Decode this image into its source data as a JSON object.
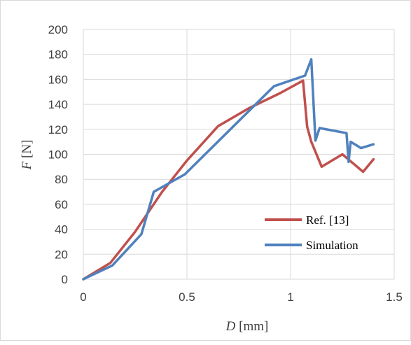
{
  "chart_data": {
    "type": "line",
    "title": "",
    "xlabel": {
      "var": "D",
      "unit": " [mm]"
    },
    "ylabel": {
      "var": "F",
      "unit": " [N]"
    },
    "xlim": [
      0,
      1.5
    ],
    "ylim": [
      0,
      200
    ],
    "xticks": [
      0,
      0.5,
      1,
      1.5
    ],
    "xtick_labels": [
      "0",
      "0.5",
      "1",
      "1.5"
    ],
    "yticks": [
      0,
      20,
      40,
      60,
      80,
      100,
      120,
      140,
      160,
      180,
      200
    ],
    "ytick_labels": [
      "0",
      "20",
      "40",
      "60",
      "80",
      "100",
      "120",
      "140",
      "160",
      "180",
      "200"
    ],
    "grid": true,
    "legend_position": "bottom-right",
    "series": [
      {
        "name": "Ref. [13]",
        "color": "#c0504d",
        "points": [
          [
            0,
            0
          ],
          [
            0.13,
            13
          ],
          [
            0.25,
            38
          ],
          [
            0.38,
            70
          ],
          [
            0.5,
            95
          ],
          [
            0.65,
            122.5
          ],
          [
            0.8,
            137
          ],
          [
            0.95,
            149
          ],
          [
            1.06,
            159
          ],
          [
            1.08,
            122
          ],
          [
            1.1,
            110
          ],
          [
            1.15,
            90
          ],
          [
            1.25,
            100
          ],
          [
            1.35,
            86
          ],
          [
            1.4,
            96
          ]
        ]
      },
      {
        "name": "Simulation",
        "color": "#4f81bd",
        "points": [
          [
            0,
            0
          ],
          [
            0.14,
            11
          ],
          [
            0.28,
            36
          ],
          [
            0.34,
            70
          ],
          [
            0.49,
            84
          ],
          [
            0.92,
            154.5
          ],
          [
            1.07,
            163
          ],
          [
            1.1,
            176
          ],
          [
            1.12,
            111
          ],
          [
            1.14,
            121
          ],
          [
            1.27,
            117
          ],
          [
            1.28,
            94
          ],
          [
            1.29,
            110
          ],
          [
            1.34,
            105
          ],
          [
            1.4,
            108
          ]
        ]
      }
    ]
  }
}
